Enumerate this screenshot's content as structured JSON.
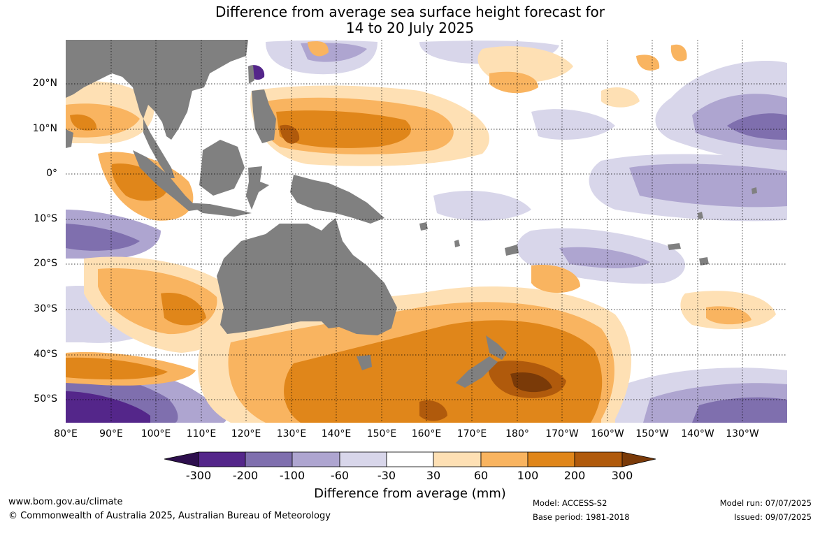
{
  "title": {
    "line1": "Difference from average sea surface height forecast for",
    "line2": "14 to 20 July 2025"
  },
  "latitude_labels": [
    "20°N",
    "10°N",
    "0°",
    "10°S",
    "20°S",
    "30°S",
    "40°S",
    "50°S"
  ],
  "longitude_labels": [
    "80°E",
    "90°E",
    "100°E",
    "110°E",
    "120°E",
    "130°E",
    "140°E",
    "150°E",
    "160°E",
    "170°E",
    "180°",
    "170°W",
    "160°W",
    "150°W",
    "140°W",
    "130°W"
  ],
  "colorbar": {
    "title": "Difference from average (mm)",
    "tick_labels": [
      "-300",
      "-200",
      "-100",
      "-60",
      "-30",
      "30",
      "60",
      "100",
      "200",
      "300"
    ],
    "colors": {
      "below_-300": "#2e0f4e",
      "-300_-200": "#54268a",
      "-200_-100": "#7f6fae",
      "-100_-60": "#aea5d0",
      "-60_-30": "#d8d6ea",
      "-30_30": "#ffffff",
      "30_60": "#fee0b4",
      "60_100": "#f9b460",
      "100_200": "#e0861a",
      "200_300": "#b05a0c",
      "above_300": "#7a3a08"
    },
    "land": "#808080"
  },
  "footer": {
    "url": "www.bom.gov.au/climate",
    "copyright": "© Commonwealth of Australia 2025, Australian Bureau of Meteorology",
    "model": "Model: ACCESS-S2",
    "base_period": "Base period: 1981-2018",
    "model_run": "Model run: 07/07/2025",
    "issued": "Issued: 09/07/2025"
  }
}
